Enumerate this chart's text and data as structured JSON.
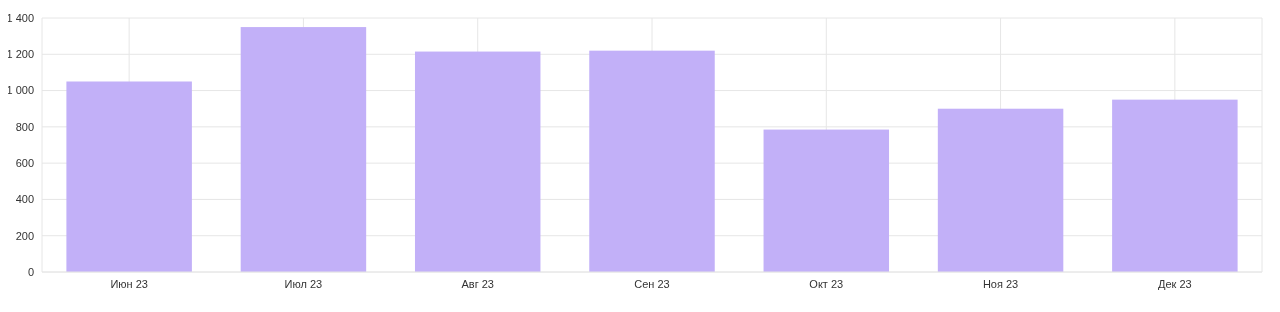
{
  "chart_data": {
    "type": "bar",
    "categories": [
      "Июн 23",
      "Июл 23",
      "Авг 23",
      "Сен 23",
      "Окт 23",
      "Ноя 23",
      "Дек 23"
    ],
    "values": [
      1050,
      1350,
      1215,
      1220,
      785,
      900,
      950
    ],
    "color": "#c2b0f8",
    "ylim": [
      0,
      1400
    ],
    "yticks": [
      0,
      200,
      400,
      600,
      800,
      {
        "value": 1000,
        "label": "1 000"
      },
      {
        "value": 1200,
        "label": "1 200"
      },
      {
        "value": 1400,
        "label": "1 400"
      }
    ],
    "grid": true
  }
}
